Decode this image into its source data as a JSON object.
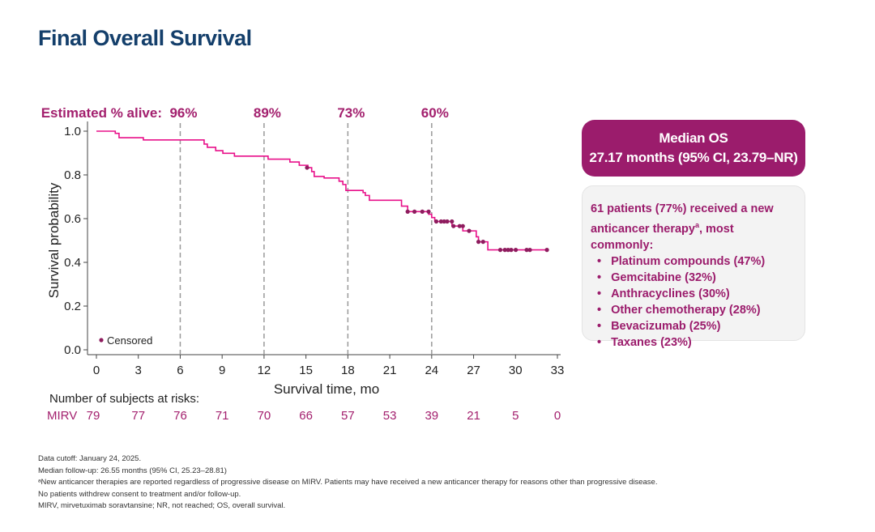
{
  "title": "Final Overall Survival",
  "median_box": {
    "line1": "Median OS",
    "line2": "27.17 months (95% CI, 23.79–NR)"
  },
  "therapy_box": {
    "intro1": "61 patients (77%) received a new",
    "intro2": "anticancer therapy",
    "intro2_sup": "a",
    "intro3": ", most commonly:",
    "items": [
      "Platinum compounds (47%)",
      "Gemcitabine (32%)",
      "Anthracyclines (30%)",
      "Other chemotherapy (28%)",
      "Bevacizumab (25%)",
      "Taxanes (23%)"
    ]
  },
  "risk_table": {
    "header": "Number of subjects at risks:",
    "arm": "MIRV",
    "values": [
      79,
      77,
      76,
      71,
      70,
      66,
      57,
      53,
      39,
      21,
      5,
      0
    ]
  },
  "footnotes": [
    "Data cutoff: January 24, 2025.",
    "Median follow-up: 26.55 months (95% CI, 25.23–28.81)",
    "ᵃNew anticancer therapies are reported regardless of progressive disease on MIRV. Patients may have received a new anticancer therapy for reasons other than progressive disease.",
    "No patients withdrew consent to treatment and/or follow-up.",
    "MIRV, mirvetuximab soravtansine; NR, not reached; OS, overall survival."
  ],
  "colors": {
    "curve": "#e8108a",
    "censored": "#8e1c5e",
    "accent": "#a3206e",
    "title": "#143f6b"
  },
  "chart_data": {
    "type": "line",
    "step": true,
    "xlabel": "Survival time, mo",
    "ylabel": "Survival probability",
    "xlim": [
      0,
      33
    ],
    "ylim": [
      0,
      1.0
    ],
    "xticks": [
      0,
      3,
      6,
      9,
      12,
      15,
      18,
      21,
      24,
      27,
      30,
      33
    ],
    "yticks": [
      "0.0",
      "0.2",
      "0.4",
      "0.6",
      "0.8",
      "1.0"
    ],
    "legend": {
      "label": "Censored",
      "position": "bottom-left"
    },
    "estimates_label": "Estimated % alive:",
    "estimates": [
      {
        "x": 6,
        "label": "96%"
      },
      {
        "x": 12,
        "label": "89%"
      },
      {
        "x": 18,
        "label": "73%"
      },
      {
        "x": 24,
        "label": "60%"
      }
    ],
    "steps": [
      [
        0,
        1.0
      ],
      [
        1.35,
        0.99
      ],
      [
        1.62,
        0.97
      ],
      [
        3.36,
        0.96
      ],
      [
        7.71,
        0.941
      ],
      [
        7.94,
        0.926
      ],
      [
        8.54,
        0.911
      ],
      [
        9.05,
        0.899
      ],
      [
        9.88,
        0.886
      ],
      [
        12.29,
        0.872
      ],
      [
        13.85,
        0.859
      ],
      [
        14.52,
        0.844
      ],
      [
        15.14,
        0.833
      ],
      [
        15.41,
        0.815
      ],
      [
        15.59,
        0.793
      ],
      [
        16.3,
        0.786
      ],
      [
        17.37,
        0.771
      ],
      [
        17.64,
        0.756
      ],
      [
        17.86,
        0.729
      ],
      [
        19.09,
        0.719
      ],
      [
        19.25,
        0.706
      ],
      [
        19.54,
        0.684
      ],
      [
        21.84,
        0.657
      ],
      [
        22.28,
        0.632
      ],
      [
        23.78,
        0.62
      ],
      [
        24.0,
        0.605
      ],
      [
        24.22,
        0.587
      ],
      [
        25.45,
        0.566
      ],
      [
        26.23,
        0.544
      ],
      [
        27.19,
        0.517
      ],
      [
        27.35,
        0.494
      ],
      [
        28.02,
        0.457
      ],
      [
        32.25,
        0.457
      ]
    ],
    "censored": [
      [
        15.08,
        0.833
      ],
      [
        22.28,
        0.632
      ],
      [
        22.77,
        0.632
      ],
      [
        23.33,
        0.632
      ],
      [
        23.78,
        0.632
      ],
      [
        24.33,
        0.587
      ],
      [
        24.67,
        0.587
      ],
      [
        24.89,
        0.587
      ],
      [
        25.11,
        0.587
      ],
      [
        25.45,
        0.587
      ],
      [
        25.56,
        0.566
      ],
      [
        26.0,
        0.566
      ],
      [
        26.23,
        0.566
      ],
      [
        26.68,
        0.544
      ],
      [
        27.35,
        0.494
      ],
      [
        27.68,
        0.494
      ],
      [
        28.91,
        0.457
      ],
      [
        29.24,
        0.457
      ],
      [
        29.47,
        0.457
      ],
      [
        29.69,
        0.457
      ],
      [
        30.02,
        0.457
      ],
      [
        30.8,
        0.457
      ],
      [
        31.03,
        0.457
      ],
      [
        32.25,
        0.457
      ]
    ]
  }
}
